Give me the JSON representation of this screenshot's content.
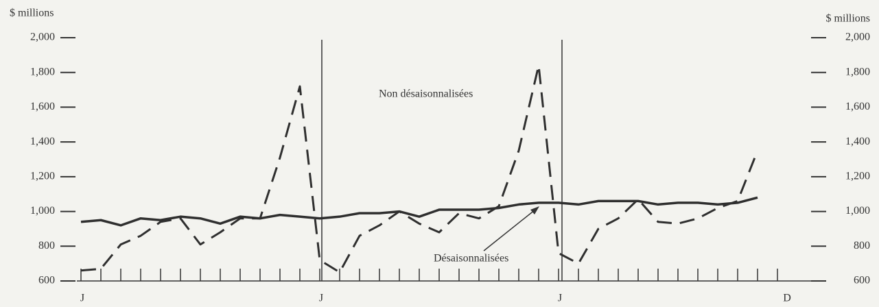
{
  "chart_data": {
    "type": "line",
    "ylabel": "$ millions",
    "y2label": "$ millions",
    "annotations": [
      "Non désaisonnalisées",
      "Désaisonnalisées"
    ],
    "categories": [
      "J",
      null,
      null,
      null,
      null,
      null,
      null,
      null,
      null,
      null,
      null,
      null,
      "J",
      null,
      null,
      null,
      null,
      null,
      null,
      null,
      null,
      null,
      null,
      null,
      "J",
      null,
      null,
      null,
      null,
      null,
      null,
      null,
      null,
      null,
      null,
      "D"
    ],
    "series": [
      {
        "color": "#2f2f2f",
        "dashed": false,
        "values": [
          940,
          950,
          920,
          960,
          950,
          970,
          960,
          930,
          970,
          960,
          980,
          970,
          960,
          970,
          990,
          990,
          1000,
          970,
          1010,
          1010,
          1010,
          1020,
          1040,
          1050,
          1050,
          1040,
          1060,
          1060,
          1060,
          1040,
          1050,
          1050,
          1040,
          1050,
          1080,
          null
        ]
      },
      {
        "color": "#2f2f2f",
        "dashed": true,
        "values": [
          660,
          670,
          810,
          860,
          940,
          960,
          810,
          880,
          960,
          960,
          1310,
          1720,
          720,
          650,
          860,
          920,
          1000,
          930,
          880,
          990,
          960,
          1030,
          1350,
          1840,
          760,
          700,
          900,
          960,
          1070,
          940,
          930,
          960,
          1020,
          1060,
          1350,
          null
        ]
      }
    ],
    "ylim": [
      600,
      2000
    ],
    "yticks": [
      600,
      800,
      {
        "value": 1000,
        "label": "1,000"
      },
      {
        "value": 1200,
        "label": "1,200"
      },
      {
        "value": 1400,
        "label": "1,400"
      },
      {
        "value": 1600,
        "label": "1,600"
      },
      {
        "value": 1800,
        "label": "1,800"
      },
      {
        "value": 2000,
        "label": "2,000"
      }
    ],
    "y2lim": [
      600,
      2000
    ],
    "y2ticks": [
      600,
      800,
      {
        "value": 1000,
        "label": "1,000"
      },
      {
        "value": 1200,
        "label": "1,200"
      },
      {
        "value": 1400,
        "label": "1,400"
      },
      {
        "value": 1600,
        "label": "1,600"
      },
      {
        "value": 1800,
        "label": "1,800"
      },
      {
        "value": 2000,
        "label": "2,000"
      }
    ]
  }
}
